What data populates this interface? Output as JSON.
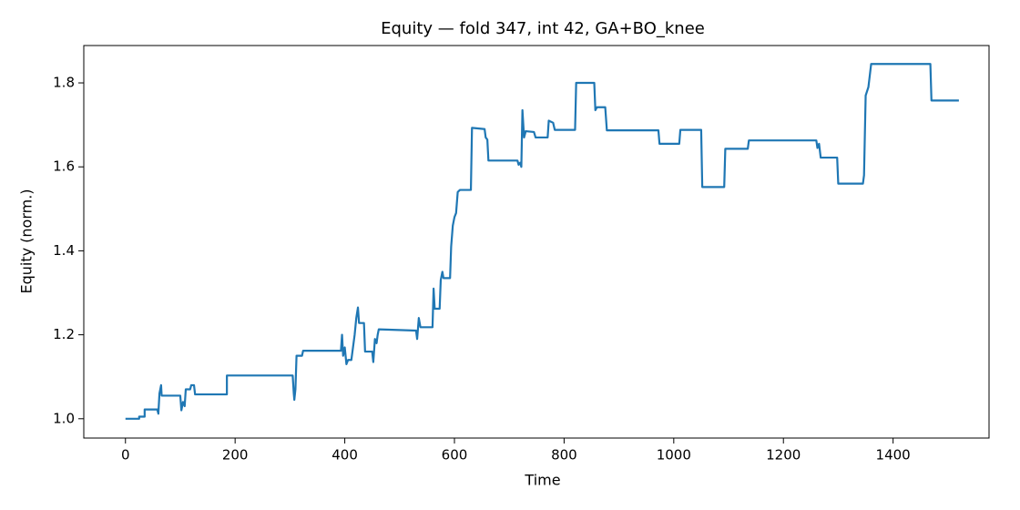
{
  "chart_data": {
    "type": "line",
    "title": "Equity — fold 347, int 42, GA+BO_knee",
    "xlabel": "Time",
    "ylabel": "Equity (norm.)",
    "x": [
      0,
      25,
      25,
      35,
      35,
      58,
      60,
      62,
      65,
      66,
      100,
      102,
      105,
      108,
      110,
      118,
      120,
      125,
      127,
      185,
      185,
      305,
      307,
      308,
      310,
      312,
      322,
      324,
      393,
      395,
      397,
      400,
      403,
      406,
      412,
      414,
      418,
      421,
      424,
      426,
      435,
      437,
      450,
      452,
      455,
      458,
      460,
      462,
      530,
      532,
      535,
      538,
      560,
      562,
      564,
      573,
      575,
      578,
      580,
      592,
      594,
      597,
      600,
      603,
      606,
      610,
      630,
      632,
      655,
      657,
      660,
      662,
      715,
      717,
      720,
      722,
      724,
      727,
      730,
      745,
      748,
      770,
      772,
      780,
      783,
      820,
      822,
      855,
      857,
      860,
      875,
      878,
      972,
      974,
      1010,
      1012,
      1050,
      1052,
      1092,
      1094,
      1135,
      1137,
      1260,
      1262,
      1265,
      1268,
      1298,
      1300,
      1345,
      1347,
      1350,
      1355,
      1360,
      1468,
      1470,
      1520
    ],
    "series": [
      {
        "name": "Equity",
        "color": "#1f77b4",
        "values": [
          1.0,
          1.0,
          1.005,
          1.005,
          1.022,
          1.022,
          1.012,
          1.06,
          1.08,
          1.055,
          1.055,
          1.02,
          1.04,
          1.03,
          1.07,
          1.07,
          1.08,
          1.08,
          1.058,
          1.058,
          1.103,
          1.103,
          1.06,
          1.045,
          1.07,
          1.15,
          1.15,
          1.162,
          1.162,
          1.2,
          1.15,
          1.17,
          1.13,
          1.14,
          1.14,
          1.16,
          1.2,
          1.24,
          1.265,
          1.228,
          1.228,
          1.16,
          1.16,
          1.135,
          1.19,
          1.18,
          1.2,
          1.213,
          1.21,
          1.19,
          1.24,
          1.218,
          1.218,
          1.31,
          1.262,
          1.262,
          1.33,
          1.35,
          1.335,
          1.335,
          1.41,
          1.46,
          1.48,
          1.49,
          1.54,
          1.545,
          1.545,
          1.693,
          1.69,
          1.67,
          1.665,
          1.615,
          1.615,
          1.605,
          1.61,
          1.6,
          1.735,
          1.67,
          1.685,
          1.683,
          1.67,
          1.67,
          1.71,
          1.705,
          1.688,
          1.688,
          1.8,
          1.8,
          1.735,
          1.742,
          1.742,
          1.687,
          1.687,
          1.655,
          1.655,
          1.688,
          1.688,
          1.552,
          1.552,
          1.643,
          1.643,
          1.663,
          1.663,
          1.645,
          1.655,
          1.622,
          1.622,
          1.56,
          1.56,
          1.58,
          1.77,
          1.79,
          1.845,
          1.845,
          1.758,
          1.758
        ]
      }
    ],
    "xlim": [
      -76,
      1575
    ],
    "ylim": [
      0.954,
      1.889
    ],
    "xticks": [
      0,
      200,
      400,
      600,
      800,
      1000,
      1200,
      1400
    ],
    "yticks": [
      {
        "value": 1,
        "label": "1.0"
      },
      1.2,
      1.4,
      1.6,
      1.8
    ]
  }
}
